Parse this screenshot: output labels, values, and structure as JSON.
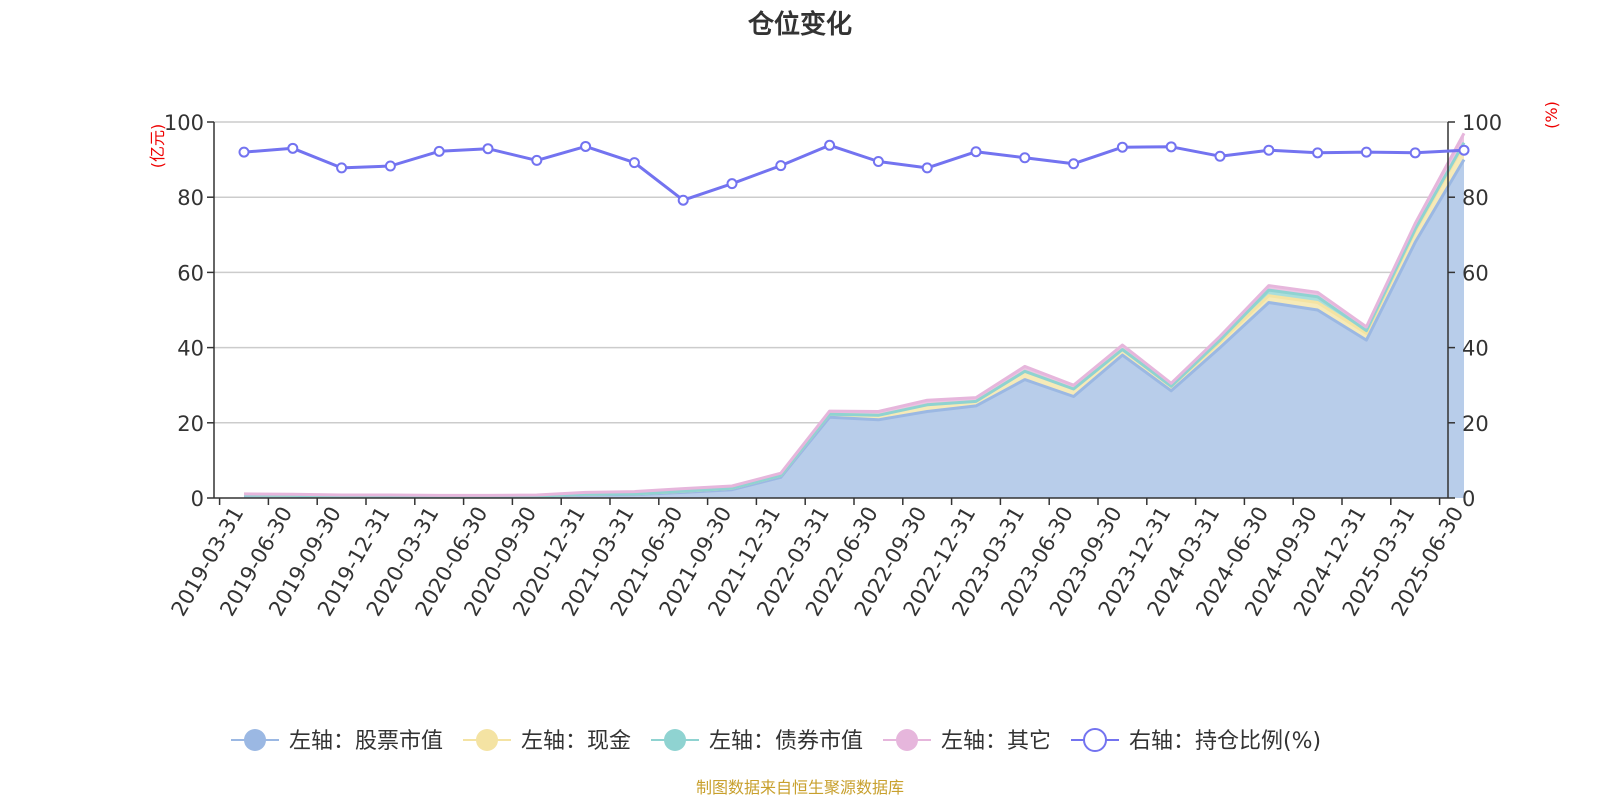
{
  "chart_data": {
    "type": "area",
    "title": "仓位变化",
    "left_axis_unit": "(亿元)",
    "right_axis_unit": "(%)",
    "left_ylim": [
      0,
      100
    ],
    "right_ylim": [
      0,
      100
    ],
    "left_yticks": [
      "0",
      "20",
      "40",
      "60",
      "80",
      "100"
    ],
    "right_yticks": [
      "0",
      "20",
      "40",
      "60",
      "80",
      "100"
    ],
    "grid": true,
    "legend_position": "bottom",
    "categories": [
      "2019-03-31",
      "2019-06-30",
      "2019-09-30",
      "2019-12-31",
      "2020-03-31",
      "2020-06-30",
      "2020-09-30",
      "2020-12-31",
      "2021-03-31",
      "2021-06-30",
      "2021-09-30",
      "2021-12-31",
      "2022-03-31",
      "2022-06-30",
      "2022-09-30",
      "2022-12-31",
      "2023-03-31",
      "2023-06-30",
      "2023-09-30",
      "2023-12-31",
      "2024-03-31",
      "2024-06-30",
      "2024-09-30",
      "2024-12-31",
      "2025-03-31",
      "2025-06-30"
    ],
    "series": [
      {
        "name": "左轴：股票市值",
        "axis": "left",
        "stacked": true,
        "color": "#9bb8e3",
        "fill": "#b8cdea",
        "values": [
          0.7,
          0.6,
          0.4,
          0.4,
          0.3,
          0.3,
          0.4,
          0.8,
          0.9,
          1.5,
          2.2,
          5.5,
          21.5,
          20.8,
          23.0,
          24.5,
          31.5,
          27.0,
          38.0,
          28.5,
          40.0,
          52.0,
          50.0,
          42.0,
          68.0,
          90.0
        ]
      },
      {
        "name": "左轴：现金",
        "axis": "left",
        "stacked": true,
        "color": "#f4e3a3",
        "fill": "#f6eab8",
        "values": [
          0.1,
          0.1,
          0.1,
          0.1,
          0.1,
          0.1,
          0.1,
          0.2,
          0.2,
          0.3,
          0.4,
          0.5,
          0.8,
          1.2,
          1.8,
          1.2,
          2.2,
          2.0,
          1.5,
          1.2,
          1.5,
          1.8,
          2.0,
          1.8,
          3.0,
          4.0
        ]
      },
      {
        "name": "左轴：债券市值",
        "axis": "left",
        "stacked": true,
        "color": "#8fd3d1",
        "fill": "#a9dedc",
        "values": [
          0,
          0,
          0,
          0,
          0,
          0,
          0,
          0,
          0,
          0,
          0,
          0,
          0,
          0,
          0,
          0,
          0,
          0,
          0,
          0,
          0.5,
          1.5,
          1.5,
          0.7,
          0.5,
          0.5
        ]
      },
      {
        "name": "左轴：其它",
        "axis": "left",
        "stacked": true,
        "color": "#e6b6dc",
        "fill": "#ebc4e3",
        "values": [
          0.3,
          0.3,
          0.3,
          0.3,
          0.3,
          0.3,
          0.3,
          0.5,
          0.6,
          0.7,
          0.6,
          0.6,
          0.8,
          1.0,
          1.2,
          1.0,
          1.3,
          1.0,
          1.2,
          0.8,
          1.0,
          1.2,
          1.2,
          1.0,
          1.5,
          2.5
        ]
      },
      {
        "name": "右轴：持仓比例(%)",
        "axis": "right",
        "stacked": false,
        "color": "#7373f0",
        "values": [
          92.0,
          93.0,
          87.8,
          88.3,
          92.2,
          92.9,
          89.8,
          93.5,
          89.2,
          79.2,
          83.6,
          88.4,
          93.8,
          89.5,
          87.8,
          92.1,
          90.5,
          88.9,
          93.3,
          93.4,
          90.9,
          92.5,
          91.8,
          92.0,
          91.8,
          92.5
        ]
      }
    ]
  },
  "source_note": "制图数据来自恒生聚源数据库"
}
